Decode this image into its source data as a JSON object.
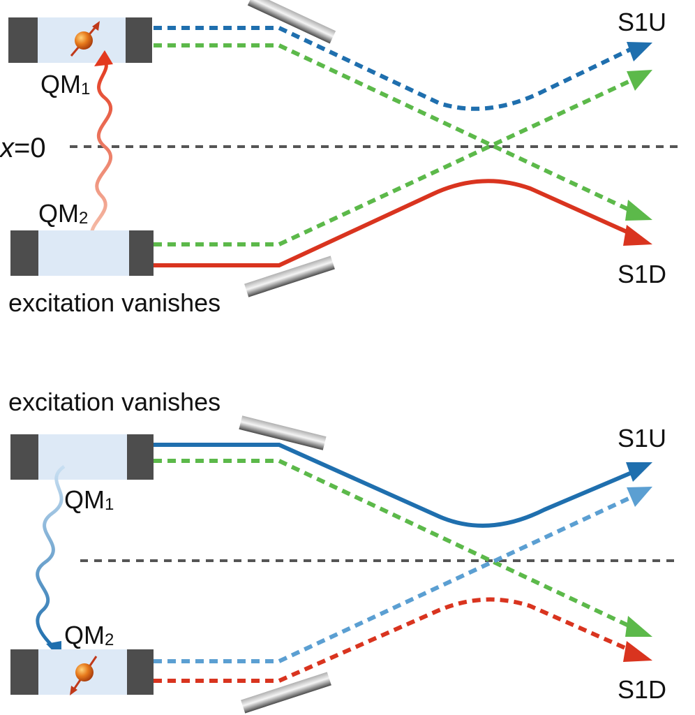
{
  "panels": [
    {
      "qm1_label": "QM",
      "qm1_sub": "1",
      "qm2_label": "QM",
      "qm2_sub": "2",
      "axis_label_var": "x",
      "axis_label_eq": "=0",
      "caption": "excitation vanishes",
      "out_up": "S1U",
      "out_down": "S1D"
    },
    {
      "qm1_label": "QM",
      "qm1_sub": "1",
      "qm2_label": "QM",
      "qm2_sub": "2",
      "caption": "excitation vanishes",
      "out_up": "S1U",
      "out_down": "S1D"
    }
  ],
  "colors": {
    "blue": "#1f6fae",
    "light_blue": "#5b9fd2",
    "green": "#5cb94a",
    "red": "#d9341f",
    "crystal_cap": "#4d4d4d",
    "crystal_body": "#dde9f6",
    "atom": "#e07020",
    "axis": "#555555"
  },
  "icons": [
    "mirror-icon",
    "atom-icon",
    "wavy-photon-icon",
    "arrowhead-icon"
  ]
}
